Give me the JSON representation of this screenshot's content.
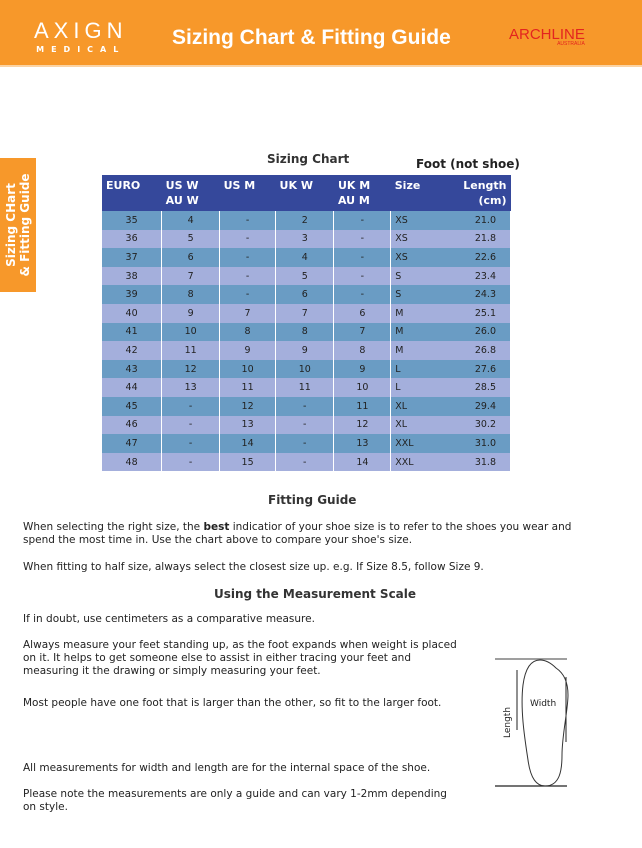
{
  "header": {
    "logo_top": "AXIGN",
    "logo_bottom": "MEDICAL",
    "title": "Sizing Chart & Fitting Guide",
    "brand": "ARCHLINE",
    "brand_sub": "AUSTRALIA"
  },
  "side_tab": {
    "line1": "Sizing CHart",
    "line2": "& Fitting Guide"
  },
  "chart": {
    "title": "Sizing Chart",
    "note": "Foot (not shoe)",
    "columns": [
      [
        "EURO",
        ""
      ],
      [
        "US W",
        "AU W"
      ],
      [
        "US M",
        ""
      ],
      [
        "UK W",
        ""
      ],
      [
        "UK M",
        "AU M"
      ],
      [
        "Size",
        ""
      ],
      [
        "Length",
        "(cm)"
      ]
    ],
    "rows": [
      [
        "35",
        "4",
        "-",
        "2",
        "-",
        "XS",
        "21.0"
      ],
      [
        "36",
        "5",
        "-",
        "3",
        "-",
        "XS",
        "21.8"
      ],
      [
        "37",
        "6",
        "-",
        "4",
        "-",
        "XS",
        "22.6"
      ],
      [
        "38",
        "7",
        "-",
        "5",
        "-",
        "S",
        "23.4"
      ],
      [
        "39",
        "8",
        "-",
        "6",
        "-",
        "S",
        "24.3"
      ],
      [
        "40",
        "9",
        "7",
        "7",
        "6",
        "M",
        "25.1"
      ],
      [
        "41",
        "10",
        "8",
        "8",
        "7",
        "M",
        "26.0"
      ],
      [
        "42",
        "11",
        "9",
        "9",
        "8",
        "M",
        "26.8"
      ],
      [
        "43",
        "12",
        "10",
        "10",
        "9",
        "L",
        "27.6"
      ],
      [
        "44",
        "13",
        "11",
        "11",
        "10",
        "L",
        "28.5"
      ],
      [
        "45",
        "-",
        "12",
        "-",
        "11",
        "XL",
        "29.4"
      ],
      [
        "46",
        "-",
        "13",
        "-",
        "12",
        "XL",
        "30.2"
      ],
      [
        "47",
        "-",
        "14",
        "-",
        "13",
        "XXL",
        "31.0"
      ],
      [
        "48",
        "-",
        "15",
        "-",
        "14",
        "XXL",
        "31.8"
      ]
    ]
  },
  "fitting": {
    "title": "Fitting Guide",
    "p1a": "When selecting the right size, the ",
    "p1b": "best",
    "p1c": " indicatior of your shoe size is to refer to the shoes you wear and spend the most time in. Use the chart above to compare your shoe's size.",
    "p2": "When fitting to half size, always select the closest size up. e.g. If Size 8.5, follow Size 9."
  },
  "measure": {
    "title": "Using the Measurement Scale",
    "p1": "If in doubt, use centimeters as a comparative measure.",
    "p2": "Always measure your feet standing up, as the foot expands when weight is placed on it. It helps to get someone else to assist in either tracing your feet and measuring it the drawing or simply measuring your feet.",
    "p3": "Most people have one foot that is larger than the other, so fit to the larger foot.",
    "p4": "All measurements for width and length are for the internal space of the shoe.",
    "p5": "Please note the measurements are only a guide and can vary 1-2mm depending on style.",
    "diagram_length": "Length",
    "diagram_width": "Width"
  }
}
